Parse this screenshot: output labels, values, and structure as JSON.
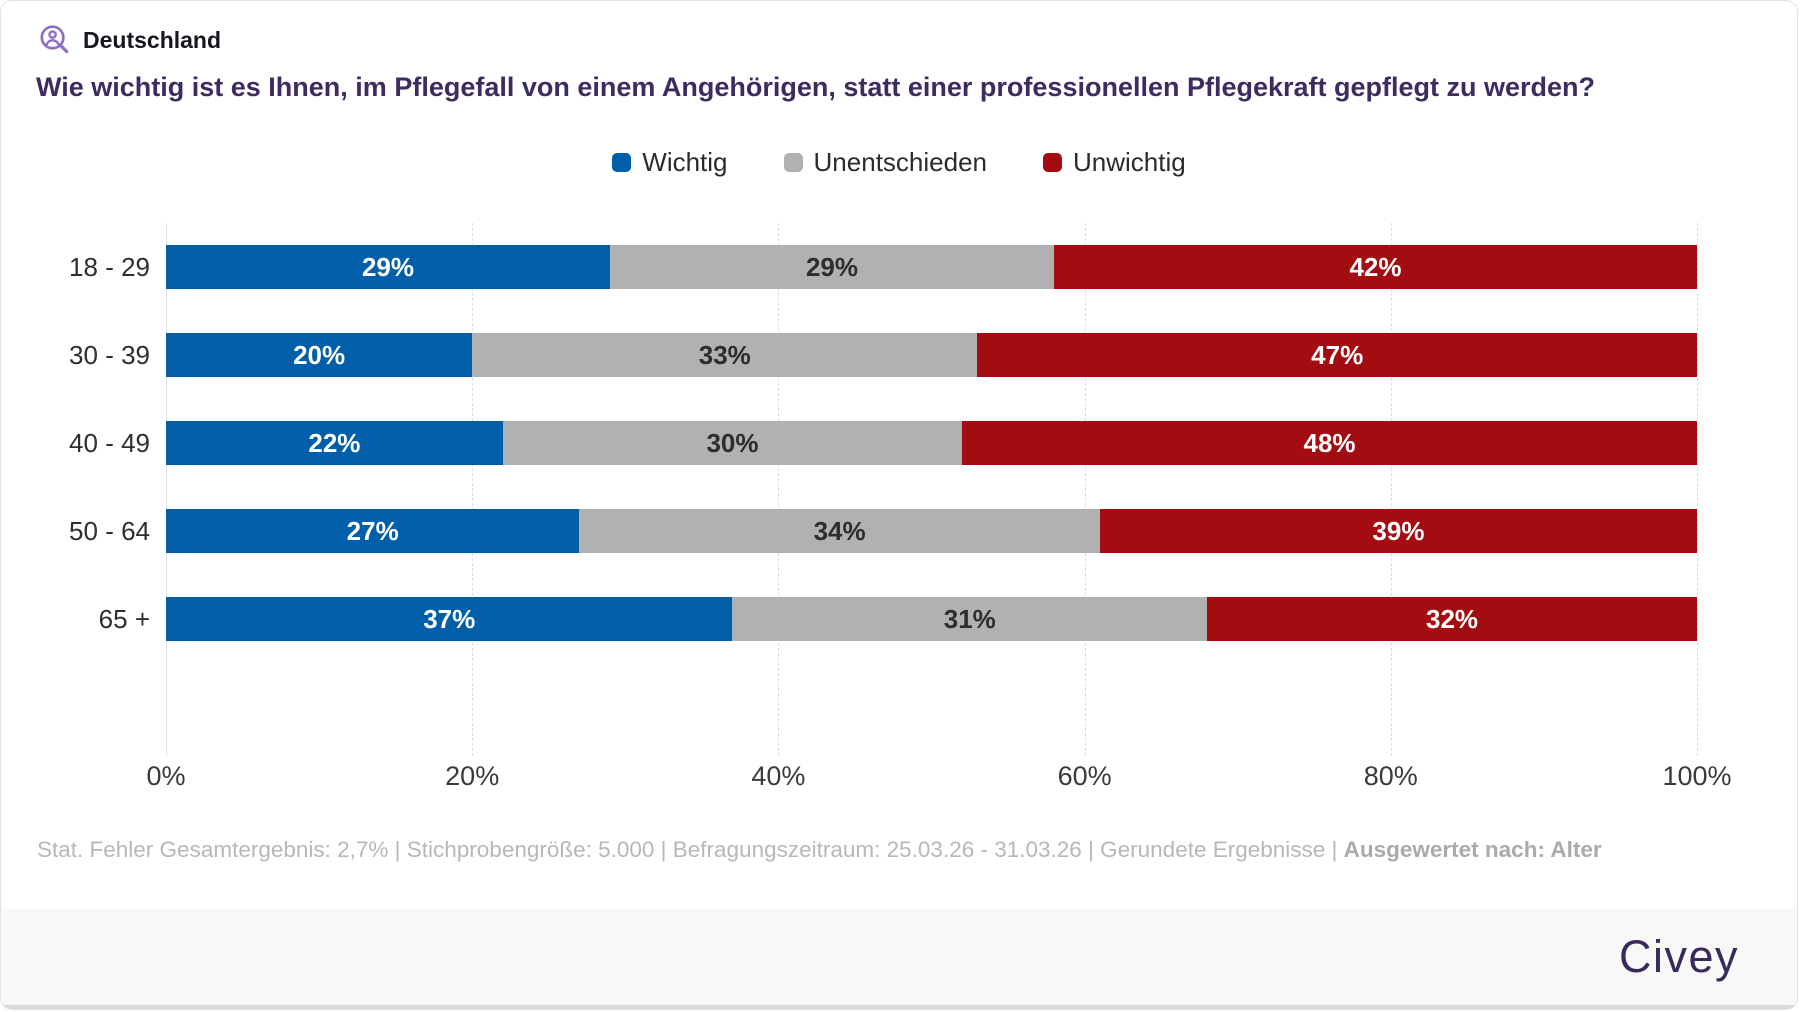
{
  "header": {
    "region": "Deutschland"
  },
  "colors": {
    "accent_blue": "#005fa8",
    "neutral_gray": "#b1b1b1",
    "negative_red": "#a30c10",
    "title_purple": "#3e2b5f",
    "brand_purple": "#3a2a5c",
    "icon_purple": "#8f6fc2"
  },
  "chart_data": {
    "type": "bar",
    "orientation": "horizontal",
    "stacked": true,
    "title": "Wie wichtig ist es Ihnen, im Pflegefall von einem Angehörigen, statt einer professionellen Pflegekraft gepflegt zu werden?",
    "categories": [
      "18 - 29",
      "30 - 39",
      "40 - 49",
      "50 - 64",
      "65 +"
    ],
    "series": [
      {
        "name": "Wichtig",
        "color": "#005fa8",
        "label_color": "#ffffff",
        "values": [
          29,
          20,
          22,
          27,
          37
        ]
      },
      {
        "name": "Unentschieden",
        "color": "#b1b1b1",
        "label_color": "#2d2d2d",
        "values": [
          29,
          33,
          30,
          34,
          31
        ]
      },
      {
        "name": "Unwichtig",
        "color": "#a30c10",
        "label_color": "#ffffff",
        "values": [
          42,
          47,
          48,
          39,
          32
        ]
      }
    ],
    "value_suffix": "%",
    "xlabel": "",
    "ylabel": "",
    "xlim": [
      0,
      100
    ],
    "x_ticks": [
      "0%",
      "20%",
      "40%",
      "60%",
      "80%",
      "100%"
    ],
    "grid": "dashed-vertical",
    "legend_position": "top-center"
  },
  "footnote": {
    "regular": "Stat. Fehler Gesamtergebnis: 2,7% | Stichprobengröße: 5.000 | Befragungszeitraum: 25.03.26 - 31.03.26 | Gerundete Ergebnisse | ",
    "bold": "Ausgewertet nach: Alter"
  },
  "footer": {
    "brand": "Civey"
  }
}
